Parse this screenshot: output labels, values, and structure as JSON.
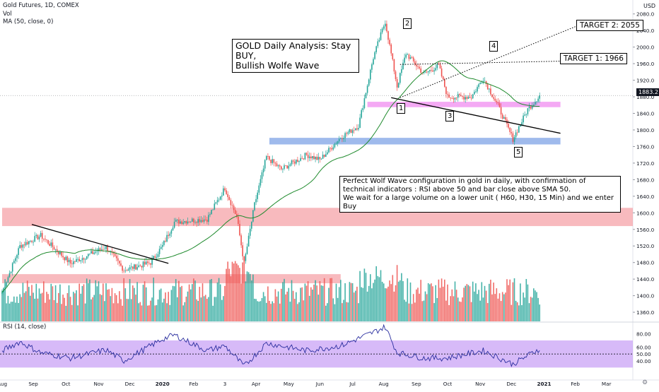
{
  "header": {
    "symbol_line": "Gold Futures, 1D, COMEX",
    "vol_label": "Vol",
    "ma_label": "MA (50, close, 0)",
    "currency": "USD",
    "rsi_label": "RSI (14, close)"
  },
  "annotations": {
    "title_line1": "GOLD Daily Analysis: Stay BUY,",
    "title_line2": "Bullish Wolfe Wave",
    "target2": "TARGET 2: 2055",
    "target1": "TARGET 1: 1966",
    "note_line1": "Perfect Wolf Wave configuration in gold in daily, with confirmation of",
    "note_line2": "technical indicators : RSI above 50 and bar close above SMA 50.",
    "note_line3": " We wait for a large volume on a lower unit ( H60, H30, 15 Min) and we enter Buy",
    "wave_labels": [
      "1",
      "2",
      "3",
      "4",
      "5"
    ]
  },
  "colors": {
    "up": "#26a69a",
    "down": "#ef5350",
    "ma": "#1e8a2c",
    "rsi": "#2a2e9f",
    "rsi_band": "#c9a3f5",
    "pink_zone": "#f6a3a8",
    "magenta_zone": "#f08cf0",
    "blue_zone": "#7fa3e6"
  },
  "chart_data": {
    "type": "candlestick",
    "price_axis": {
      "ticks": [
        1360.0,
        1400.0,
        1440.0,
        1480.0,
        1520.0,
        1560.0,
        1600.0,
        1640.0,
        1680.0,
        1720.0,
        1760.0,
        1800.0,
        1840.0,
        1880.0,
        1920.0,
        1960.0,
        2000.0,
        2040.0,
        2080.0
      ],
      "tick_labels": [
        "1360.0",
        "1400.0",
        "1440.0",
        "1480.0",
        "1520.0",
        "1560.0",
        "1600.0",
        "1640.0",
        "1680.0",
        "1720.0",
        "1760.0",
        "1800.0",
        "1840.0",
        "1880.0",
        "1920.0",
        "1960.0",
        "2000.0",
        "2040.0",
        "2080.0"
      ],
      "last_price": 1883.2,
      "last_price_label": "1883.2",
      "range": [
        1338,
        2100
      ]
    },
    "rsi_axis": {
      "ticks": [
        40,
        50,
        60,
        80
      ],
      "tick_labels": [
        "40.00",
        "50.00",
        "60.00",
        "80.00"
      ],
      "band": [
        30,
        70
      ],
      "range": [
        20,
        95
      ]
    },
    "time_axis": {
      "labels": [
        "Aug",
        "Sep",
        "Oct",
        "Nov",
        "Dec",
        "2020",
        "Feb",
        "3",
        "Apr",
        "May",
        "Jun",
        "Jul",
        "Aug",
        "Sep",
        "Oct",
        "Nov",
        "Dec",
        "2021",
        "Feb",
        "Mar"
      ],
      "label_bar_index": [
        0,
        21,
        43,
        65,
        86,
        108,
        129,
        150,
        171,
        193,
        214,
        236,
        257,
        279,
        300,
        322,
        343,
        365,
        386,
        407
      ]
    },
    "keypoints": [
      {
        "i": 0,
        "p": 1408
      },
      {
        "i": 12,
        "p": 1520
      },
      {
        "i": 26,
        "p": 1545
      },
      {
        "i": 46,
        "p": 1478
      },
      {
        "i": 70,
        "p": 1518
      },
      {
        "i": 82,
        "p": 1462
      },
      {
        "i": 100,
        "p": 1480
      },
      {
        "i": 108,
        "p": 1520
      },
      {
        "i": 116,
        "p": 1578
      },
      {
        "i": 138,
        "p": 1585
      },
      {
        "i": 150,
        "p": 1660
      },
      {
        "i": 158,
        "p": 1590
      },
      {
        "i": 163,
        "p": 1478
      },
      {
        "i": 170,
        "p": 1620
      },
      {
        "i": 178,
        "p": 1735
      },
      {
        "i": 188,
        "p": 1705
      },
      {
        "i": 205,
        "p": 1740
      },
      {
        "i": 214,
        "p": 1728
      },
      {
        "i": 228,
        "p": 1782
      },
      {
        "i": 240,
        "p": 1810
      },
      {
        "i": 250,
        "p": 1975
      },
      {
        "i": 258,
        "p": 2062
      },
      {
        "i": 266,
        "p": 1905
      },
      {
        "i": 272,
        "p": 1985
      },
      {
        "i": 284,
        "p": 1935
      },
      {
        "i": 294,
        "p": 1955
      },
      {
        "i": 300,
        "p": 1880
      },
      {
        "i": 316,
        "p": 1880
      },
      {
        "i": 324,
        "p": 1925
      },
      {
        "i": 334,
        "p": 1858
      },
      {
        "i": 344,
        "p": 1778
      },
      {
        "i": 354,
        "p": 1850
      },
      {
        "i": 362,
        "p": 1883
      }
    ],
    "zones": [
      {
        "name": "pink-zone-upper",
        "from": 0,
        "to": 1000,
        "low": 1568,
        "high": 1612,
        "color": "pink_zone"
      },
      {
        "name": "pink-zone-lower",
        "from": 0,
        "to": 228,
        "low": 1430,
        "high": 1452,
        "color": "pink_zone"
      },
      {
        "name": "magenta-zone",
        "from": 246,
        "to": 376,
        "low": 1855,
        "high": 1868,
        "color": "magenta_zone"
      },
      {
        "name": "blue-zone",
        "from": 180,
        "to": 376,
        "low": 1765,
        "high": 1781,
        "color": "blue_zone"
      }
    ],
    "lines": [
      {
        "name": "downtrend-line",
        "x1": 20,
        "p1": 1572,
        "x2": 112,
        "p2": 1478,
        "style": "solid"
      },
      {
        "name": "wolfe-base-line",
        "x1": 262,
        "p1": 1878,
        "x2": 376,
        "p2": 1792,
        "style": "solid"
      },
      {
        "name": "target1-line",
        "x1": 268,
        "p1": 1958,
        "x2": 376,
        "p2": 1966,
        "style": "dotted"
      },
      {
        "name": "target2-line",
        "x1": 268,
        "p1": 1878,
        "x2": 390,
        "p2": 2055,
        "style": "dotted"
      }
    ],
    "rsi_keypoints": [
      {
        "i": 0,
        "v": 55
      },
      {
        "i": 12,
        "v": 68
      },
      {
        "i": 26,
        "v": 52
      },
      {
        "i": 46,
        "v": 44
      },
      {
        "i": 70,
        "v": 56
      },
      {
        "i": 82,
        "v": 40
      },
      {
        "i": 108,
        "v": 72
      },
      {
        "i": 116,
        "v": 78
      },
      {
        "i": 138,
        "v": 55
      },
      {
        "i": 150,
        "v": 62
      },
      {
        "i": 163,
        "v": 32
      },
      {
        "i": 178,
        "v": 66
      },
      {
        "i": 205,
        "v": 55
      },
      {
        "i": 228,
        "v": 62
      },
      {
        "i": 250,
        "v": 82
      },
      {
        "i": 258,
        "v": 90
      },
      {
        "i": 266,
        "v": 52
      },
      {
        "i": 284,
        "v": 44
      },
      {
        "i": 300,
        "v": 44
      },
      {
        "i": 324,
        "v": 55
      },
      {
        "i": 344,
        "v": 35
      },
      {
        "i": 362,
        "v": 58
      }
    ]
  }
}
